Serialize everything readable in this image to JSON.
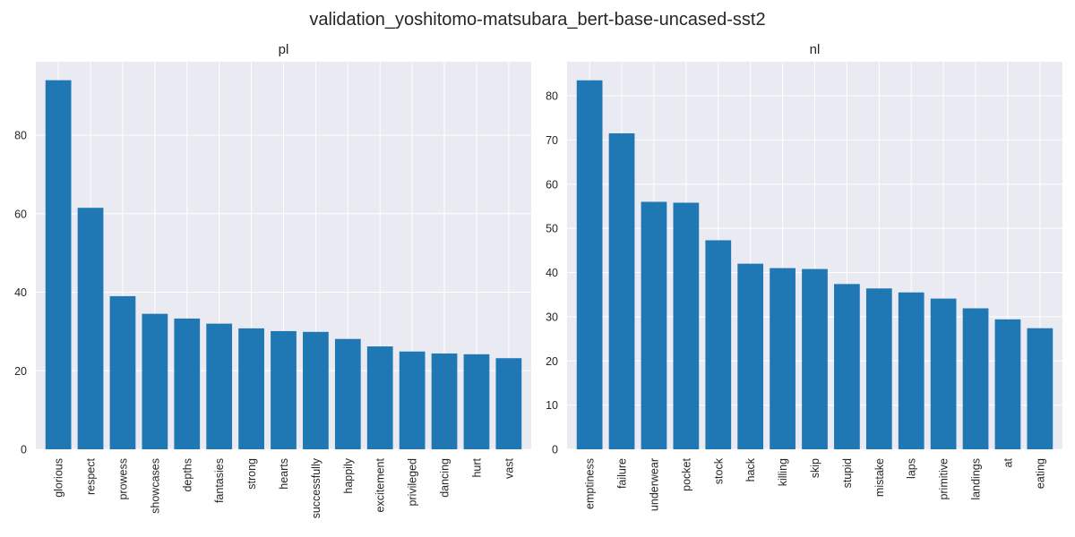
{
  "figure": {
    "suptitle": "validation_yoshitomo-matsubara_bert-base-uncased-sst2"
  },
  "colors": {
    "bar": "#1f77b4",
    "plot_background": "#eaeaf2",
    "grid": "#ffffff",
    "text": "#262626"
  },
  "chart_data": [
    {
      "type": "bar",
      "title": "pl",
      "categories": [
        "glorious",
        "respect",
        "prowess",
        "showcases",
        "depths",
        "fantasies",
        "strong",
        "hearts",
        "successfully",
        "happily",
        "excitement",
        "privileged",
        "dancing",
        "hurt",
        "vast"
      ],
      "values": [
        94,
        61.5,
        39,
        34.5,
        33.3,
        32,
        30.8,
        30.1,
        29.9,
        28.1,
        26.2,
        24.9,
        24.4,
        24.2,
        23.2
      ],
      "ylim": [
        0,
        98.7
      ],
      "yticks": [
        0,
        20,
        40,
        60,
        80
      ],
      "grid": true,
      "xlabel": "",
      "ylabel": ""
    },
    {
      "type": "bar",
      "title": "nl",
      "categories": [
        "emptiness",
        "failure",
        "underwear",
        "pocket",
        "stock",
        "hack",
        "killing",
        "skip",
        "stupid",
        "mistake",
        "laps",
        "primitive",
        "landings",
        "at",
        "eating"
      ],
      "values": [
        83.5,
        71.5,
        56,
        55.8,
        47.3,
        42,
        41,
        40.8,
        37.4,
        36.4,
        35.5,
        34.1,
        31.9,
        29.4,
        27.4
      ],
      "ylim": [
        0,
        87.7
      ],
      "yticks": [
        0,
        10,
        20,
        30,
        40,
        50,
        60,
        70,
        80
      ],
      "grid": true,
      "xlabel": "",
      "ylabel": ""
    }
  ]
}
